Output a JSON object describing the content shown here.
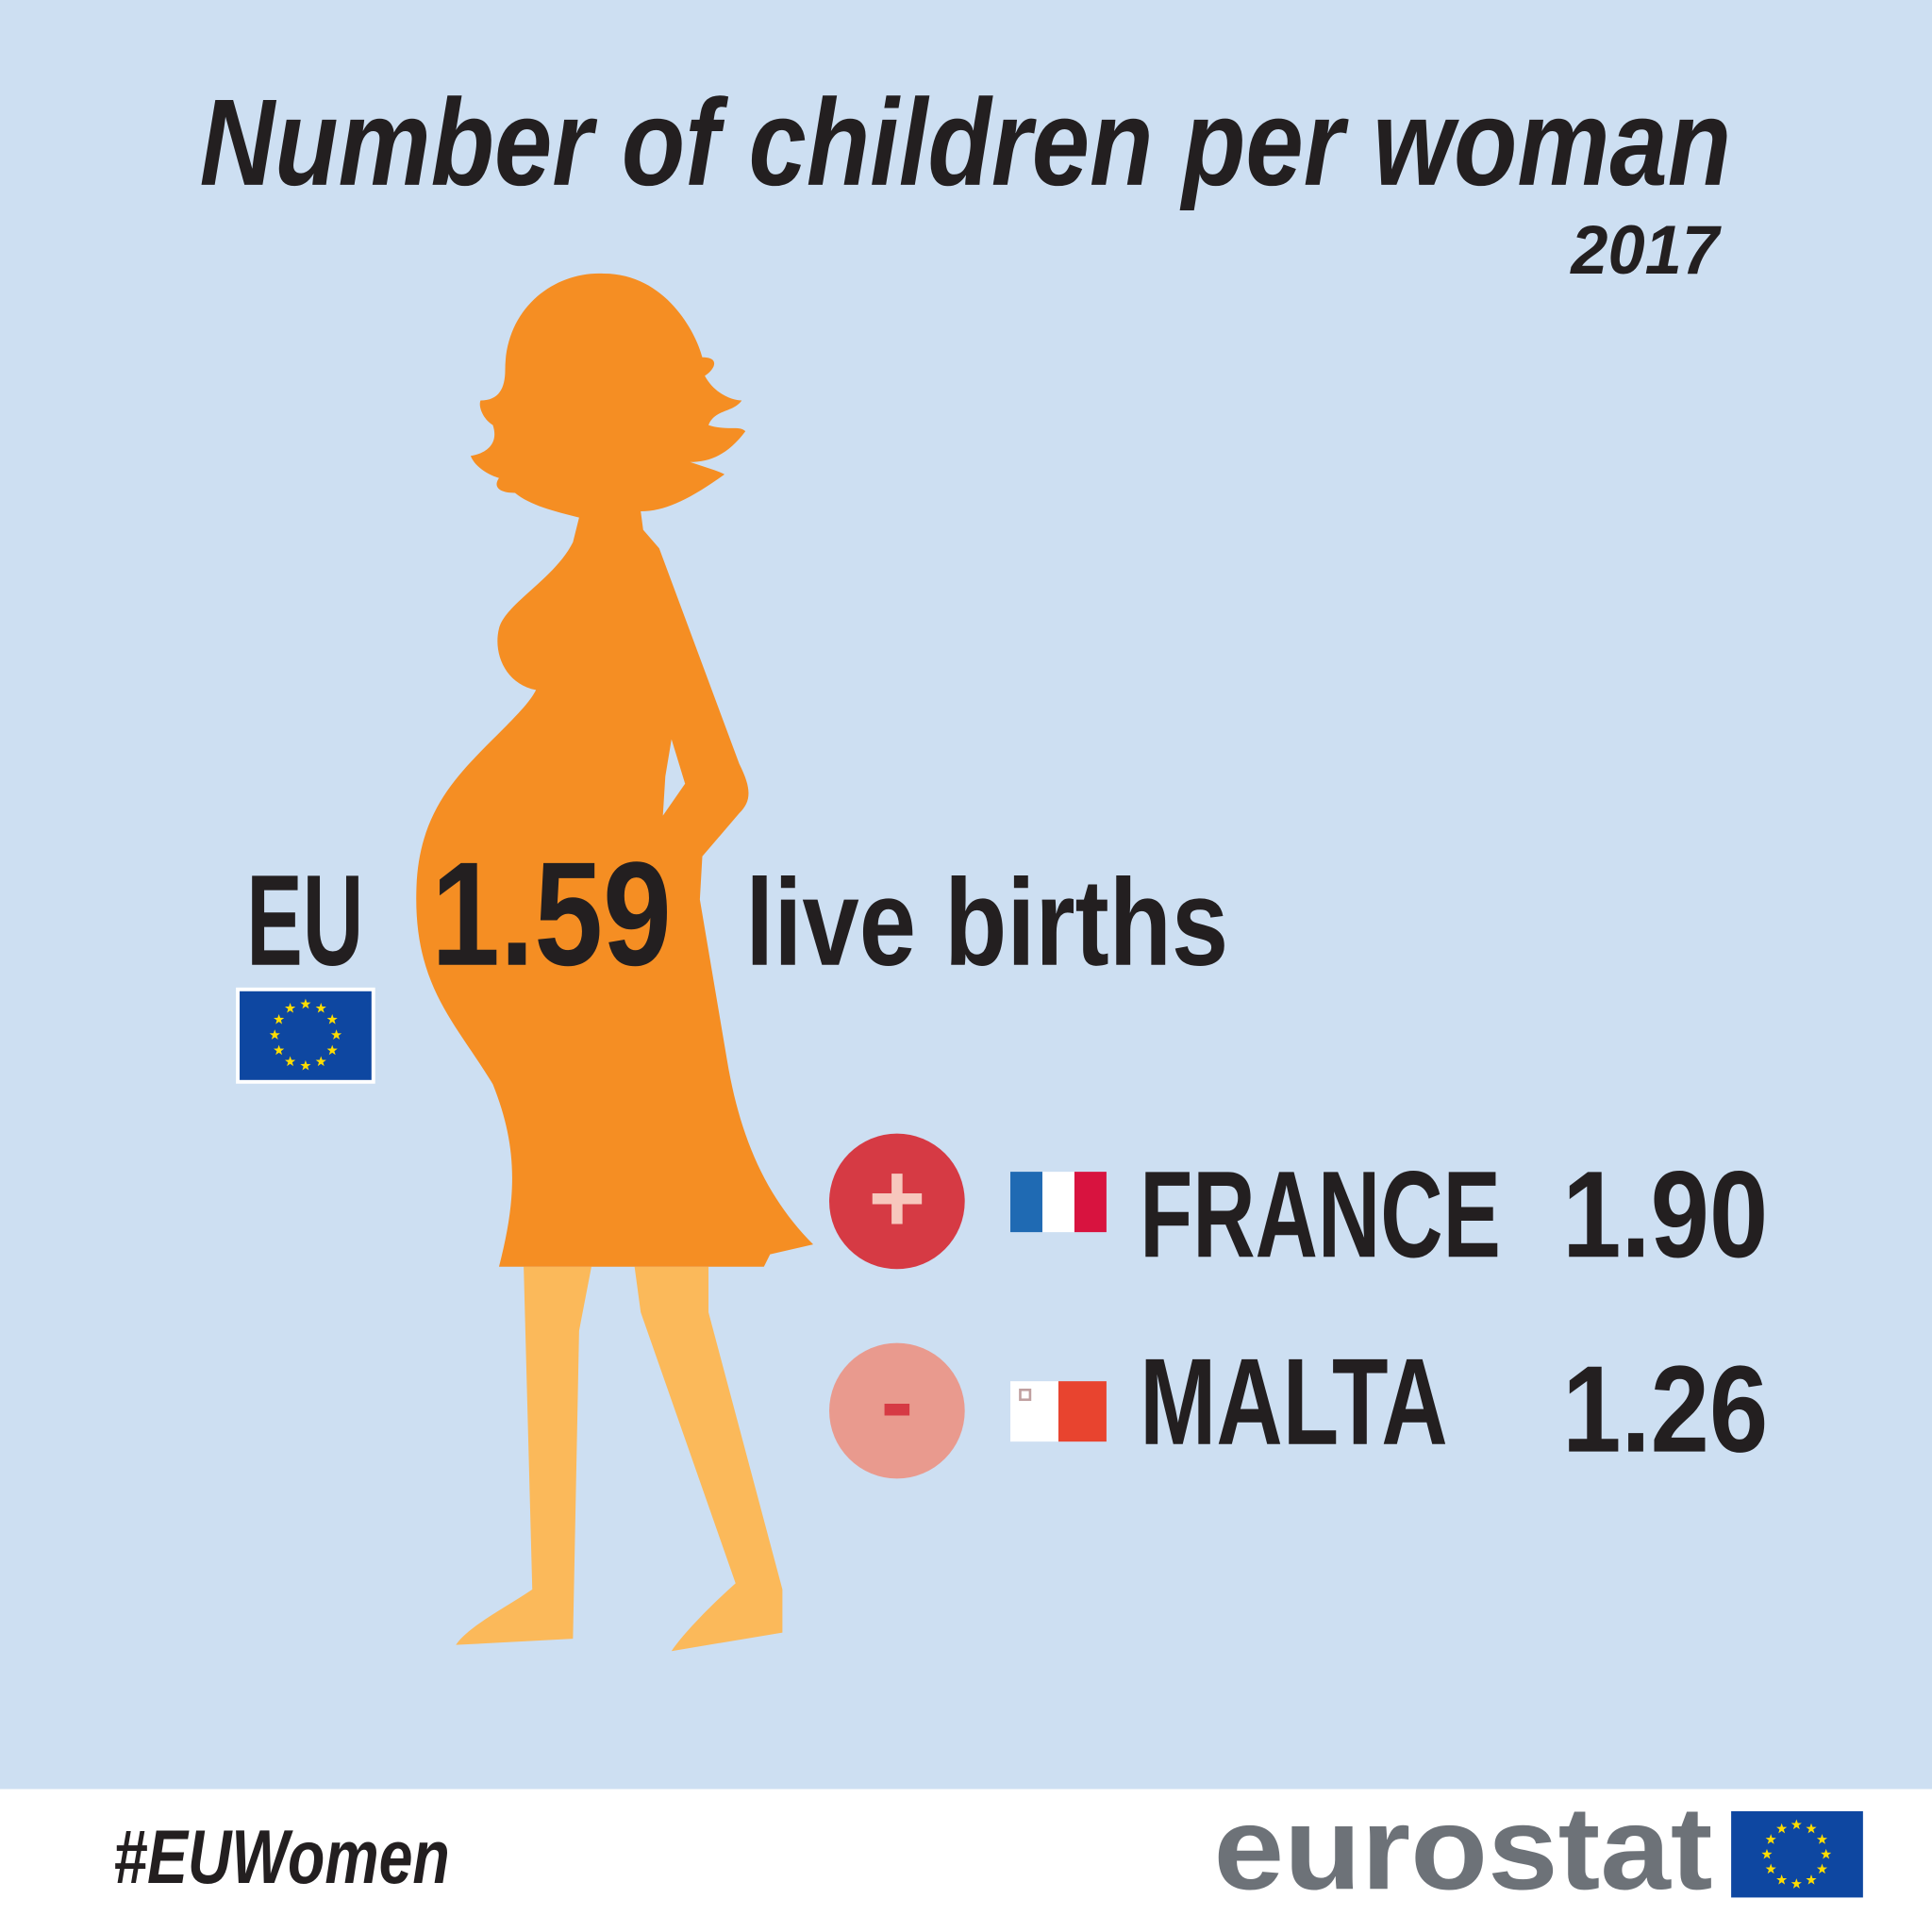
{
  "header": {
    "title": "Number of children per woman",
    "year": "2017"
  },
  "eu": {
    "label": "EU",
    "value": "1.59",
    "unit": "live births"
  },
  "countries": [
    {
      "sign": "+",
      "name": "FRANCE",
      "value": "1.90"
    },
    {
      "sign": "-",
      "name": "MALTA",
      "value": "1.26"
    }
  ],
  "footer": {
    "hashtag": "#EUWomen",
    "logo": "eurostat"
  }
}
